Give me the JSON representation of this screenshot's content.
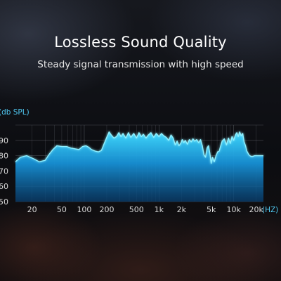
{
  "header": {
    "title": "Lossless Sound Quality",
    "subtitle": "Steady signal transmission with high speed"
  },
  "colors": {
    "accent": "#2ec8f4",
    "accent_dark": "#0a4f86",
    "label": "#4fc9f2",
    "tick_text": "#d8d8d8",
    "grid": "#8a8f99"
  },
  "chart_data": {
    "type": "area",
    "title": "",
    "xlabel": "(HZ)",
    "ylabel": "(db SPL)",
    "x_scale": "log",
    "xlim": [
      12,
      25000
    ],
    "ylim": [
      50,
      100
    ],
    "grid": true,
    "legend": "none",
    "x_ticks": [
      {
        "value": 20,
        "label": "20"
      },
      {
        "value": 50,
        "label": "50"
      },
      {
        "value": 100,
        "label": "100"
      },
      {
        "value": 200,
        "label": "200"
      },
      {
        "value": 500,
        "label": "500"
      },
      {
        "value": 1000,
        "label": "1k"
      },
      {
        "value": 2000,
        "label": "2k"
      },
      {
        "value": 5000,
        "label": "5k"
      },
      {
        "value": 10000,
        "label": "10k"
      },
      {
        "value": 20000,
        "label": "20k"
      }
    ],
    "y_ticks": [
      {
        "value": 90,
        "label": "90"
      },
      {
        "value": 80,
        "label": "80"
      },
      {
        "value": 70,
        "label": "70"
      },
      {
        "value": 60,
        "label": "60"
      },
      {
        "value": 50,
        "label": "50"
      }
    ],
    "x": [
      12,
      14,
      17,
      21,
      25,
      30,
      34,
      38,
      43,
      50,
      58,
      66,
      75,
      85,
      95,
      105,
      115,
      125,
      140,
      155,
      170,
      185,
      200,
      215,
      230,
      250,
      270,
      290,
      310,
      330,
      360,
      390,
      420,
      460,
      500,
      540,
      580,
      620,
      670,
      720,
      780,
      850,
      920,
      1000,
      1080,
      1160,
      1250,
      1350,
      1450,
      1550,
      1650,
      1750,
      1850,
      1950,
      2050,
      2150,
      2250,
      2400,
      2550,
      2700,
      2850,
      3000,
      3200,
      3400,
      3600,
      3800,
      4000,
      4200,
      4400,
      4600,
      4800,
      5000,
      5200,
      5500,
      5800,
      6100,
      6400,
      6700,
      7000,
      7500,
      8000,
      8500,
      9000,
      9500,
      10000,
      10500,
      11000,
      11500,
      12000,
      12600,
      13200,
      13800,
      14400,
      15000,
      16000,
      17000,
      18000,
      19000,
      20000,
      21500,
      23000,
      25000
    ],
    "values": [
      76,
      79,
      80,
      78,
      76,
      77,
      81,
      84,
      86.5,
      86,
      86,
      85,
      84.5,
      84,
      86,
      86.5,
      85.5,
      84,
      83,
      82.5,
      83.5,
      88,
      92,
      95.5,
      93.5,
      91.5,
      92.5,
      95,
      92.5,
      94.5,
      91.5,
      95,
      92,
      94.5,
      91.5,
      95,
      92.5,
      94,
      91.5,
      93.5,
      95,
      92,
      94.5,
      92.5,
      94.5,
      93,
      92,
      90,
      93.5,
      91.5,
      87,
      89.5,
      86.5,
      88,
      90.5,
      88.5,
      90,
      87.5,
      90.5,
      89,
      91,
      89.5,
      90.5,
      88.5,
      90.5,
      86.5,
      80.5,
      79,
      85,
      86.5,
      81.5,
      75,
      79,
      76,
      80,
      82.5,
      83,
      86.5,
      89.5,
      91,
      87,
      91.5,
      88,
      92.5,
      90,
      93.5,
      95,
      92.5,
      95.5,
      93,
      94.5,
      89,
      86.5,
      83,
      80.5,
      79.5,
      79.5,
      80,
      80,
      80,
      80,
      80
    ]
  }
}
